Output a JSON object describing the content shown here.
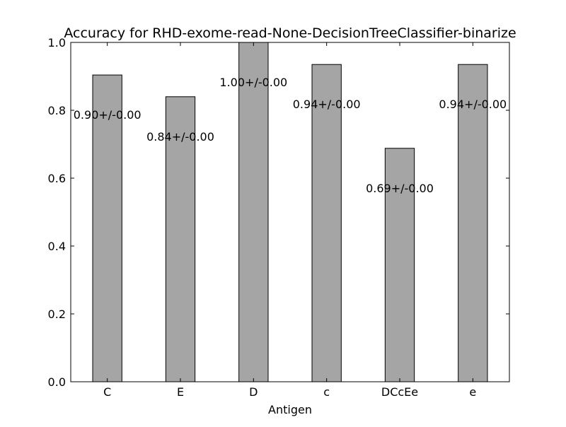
{
  "chart_data": {
    "type": "bar",
    "title": "Accuracy for RHD-exome-read-None-DecisionTreeClassifier-binarize",
    "xlabel": "Antigen",
    "ylabel": "",
    "categories": [
      "C",
      "E",
      "D",
      "c",
      "DCcEe",
      "e"
    ],
    "values": [
      0.904,
      0.84,
      1.0,
      0.935,
      0.688,
      0.935
    ],
    "data_labels": [
      "0.90+/-0.00",
      "0.84+/-0.00",
      "1.00+/-0.00",
      "0.94+/-0.00",
      "0.69+/-0.00",
      "0.94+/-0.00"
    ],
    "ylim": [
      0.0,
      1.0
    ],
    "yticks": [
      "0.0",
      "0.2",
      "0.4",
      "0.6",
      "0.8",
      "1.0"
    ],
    "grid": false,
    "legend": "none",
    "bar_color": "#a5a5a5",
    "edge_color": "#000000"
  }
}
